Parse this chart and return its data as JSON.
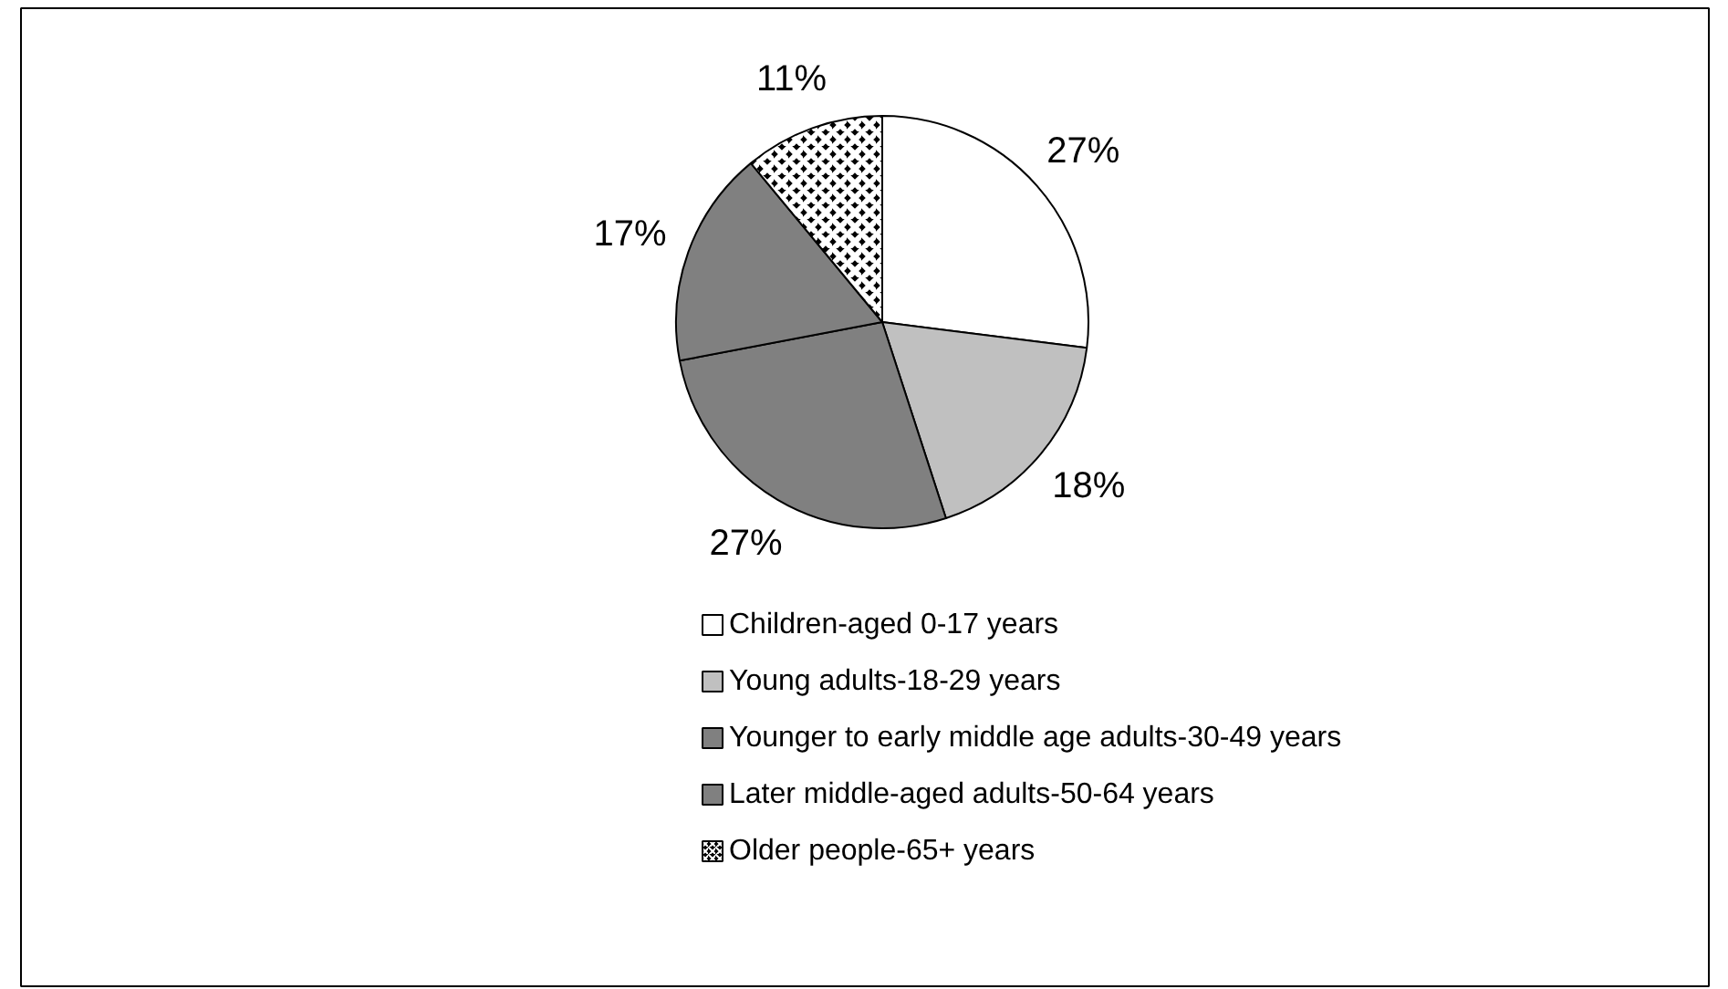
{
  "chart_data": {
    "type": "pie",
    "categories": [
      "Children-aged 0-17 years",
      "Young adults-18-29 years",
      "Younger to early middle age adults-30-49 years",
      "Later middle-aged adults-50-64 years",
      "Older people-65+ years"
    ],
    "values": [
      27,
      18,
      27,
      17,
      11
    ],
    "colors": [
      "#ffffff",
      "#c0c0c0",
      "#808080",
      "#808080",
      "#000000"
    ],
    "value_labels": [
      "27%",
      "18%",
      "27%",
      "17%",
      "11%"
    ],
    "legend": "bottom"
  }
}
